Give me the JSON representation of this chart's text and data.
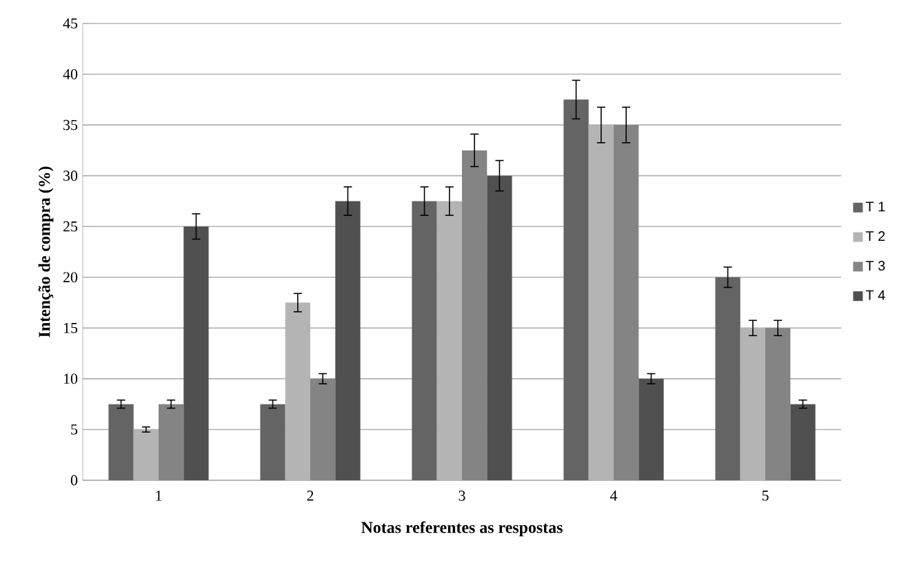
{
  "chart_data": {
    "type": "bar",
    "xlabel": "Notas referentes as respostas",
    "ylabel": "Intenção de compra (%)",
    "categories": [
      "1",
      "2",
      "3",
      "4",
      "5"
    ],
    "series": [
      {
        "name": "T 1",
        "color": "#646464",
        "values": [
          7.5,
          7.5,
          27.5,
          37.5,
          20
        ],
        "errors": [
          0.4,
          0.4,
          1.4,
          1.9,
          1.0
        ]
      },
      {
        "name": "T 2",
        "color": "#b4b4b4",
        "values": [
          5,
          17.5,
          27.5,
          35,
          15
        ],
        "errors": [
          0.25,
          0.9,
          1.4,
          1.75,
          0.75
        ]
      },
      {
        "name": "T 3",
        "color": "#848484",
        "values": [
          7.5,
          10,
          32.5,
          35,
          15
        ],
        "errors": [
          0.4,
          0.5,
          1.6,
          1.75,
          0.75
        ]
      },
      {
        "name": "T 4",
        "color": "#505050",
        "values": [
          25,
          27.5,
          30,
          10,
          7.5
        ],
        "errors": [
          1.25,
          1.4,
          1.5,
          0.5,
          0.4
        ]
      }
    ],
    "ylim": [
      0,
      45
    ],
    "yticks": [
      0,
      5,
      10,
      15,
      20,
      25,
      30,
      35,
      40,
      45
    ],
    "grid": "y",
    "legend": "right"
  }
}
